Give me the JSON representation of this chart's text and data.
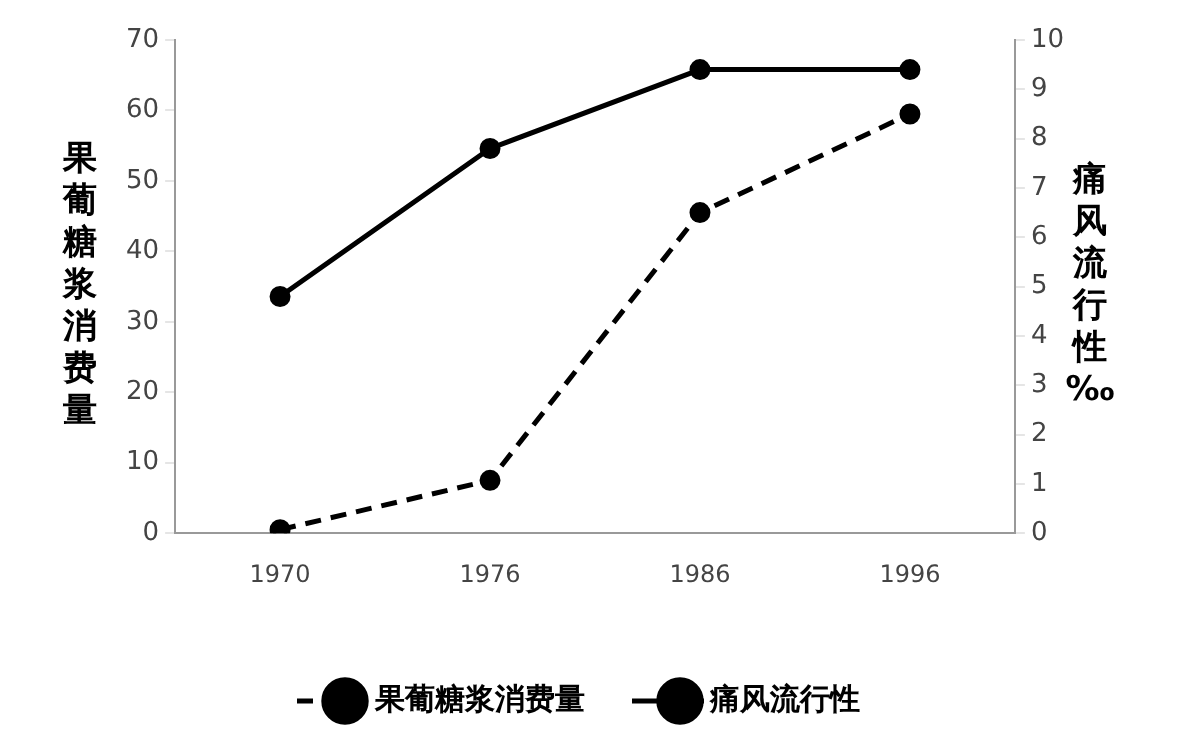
{
  "chart_data": {
    "type": "line",
    "ylabel": "果葡糖浆消费量",
    "y2label": "痛风流行性‰",
    "categories": [
      "1970",
      "1976",
      "1986",
      "1996"
    ],
    "series": [
      {
        "name": "果葡糖浆消费量",
        "color": "#000000",
        "values": [
          0.5,
          7.5,
          45.5,
          59.5
        ],
        "line_style": "dashed"
      },
      {
        "name": "痛风流行性",
        "color": "#000000",
        "values": [
          4.8,
          7.8,
          9.4,
          9.4
        ],
        "axis": "y2",
        "line_style": "solid"
      }
    ],
    "ylim": [
      0,
      70
    ],
    "yticks": [
      0,
      10,
      20,
      30,
      40,
      50,
      60,
      70
    ],
    "y2lim": [
      0,
      10
    ],
    "y2ticks": [
      0,
      1,
      2,
      3,
      4,
      5,
      6,
      7,
      8,
      9,
      10
    ],
    "grid": false,
    "legend": "bottom",
    "marker": "circle"
  }
}
